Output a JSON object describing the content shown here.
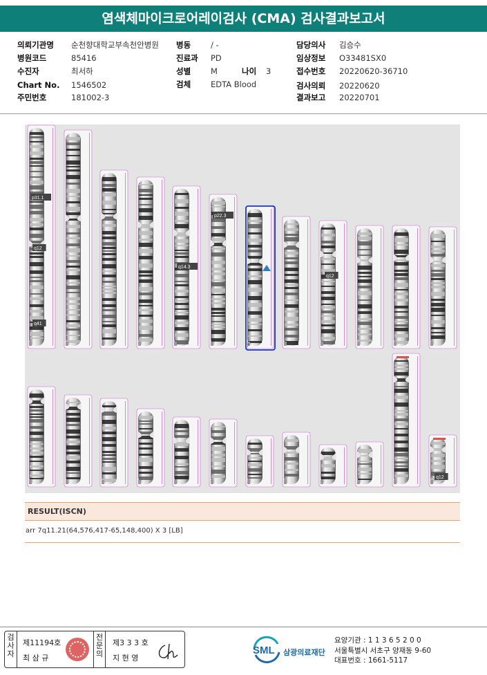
{
  "report": {
    "title": "염색체마이크로어레이검사 (CMA) 검사결과보고서"
  },
  "patient_info": {
    "institution_label": "의뢰기관명",
    "institution": "순천향대학교부속천안병원",
    "hospital_code_label": "병원코드",
    "hospital_code": "85416",
    "examinee_label": "수진자",
    "examinee": "최서하",
    "chart_no_label": "Chart No.",
    "chart_no": "1546502",
    "resident_no_label": "주민번호",
    "resident_no": "181002-3",
    "ward_label": "병동",
    "ward": "/ -",
    "department_label": "진료과",
    "department": "PD",
    "sex_label": "성별",
    "sex": "M",
    "age_label": "나이",
    "age": "3",
    "specimen_label": "검체",
    "specimen": "EDTA Blood",
    "doctor_label": "담당의사",
    "doctor": "김승수",
    "clinical_info_label": "임상정보",
    "clinical_info": "O33481SX0",
    "receipt_no_label": "접수번호",
    "receipt_no": "20220620-36710",
    "request_date_label": "검사의뢰",
    "request_date": "20220620",
    "report_date_label": "결과보고",
    "report_date": "20220701"
  },
  "karyogram": {
    "band_labels": {
      "chr1_a": "p31.1",
      "chr1_b": "q12",
      "chr1_c": "q41",
      "chr5": "q14.3",
      "chr6": "p22.3",
      "chr9": "q12",
      "chrY": "q12",
      "selected_chr": "7"
    },
    "highlight_color": "#1a33d6",
    "marker_color": "#2a7fc8"
  },
  "result": {
    "header": "RESULT(ISCN)",
    "text": "arr 7q11.21(64,576,417-65,148,400) X 3 [LB]"
  },
  "footer": {
    "inspector_label": "검사자",
    "inspector_license": "제11194호",
    "inspector_name": "최 삼 규",
    "physician_label": "전문의",
    "physician_license": "제3 3 3 호",
    "physician_name": "지 현 영",
    "org_logo": "SML",
    "org_name": "삼광의료재단",
    "org_code": "요양기관 : 1 1 3 6 5 2 0 0",
    "org_address": "서울특별시 서초구 양재동 9-60",
    "org_phone": "대표번호 : 1661-5117"
  }
}
